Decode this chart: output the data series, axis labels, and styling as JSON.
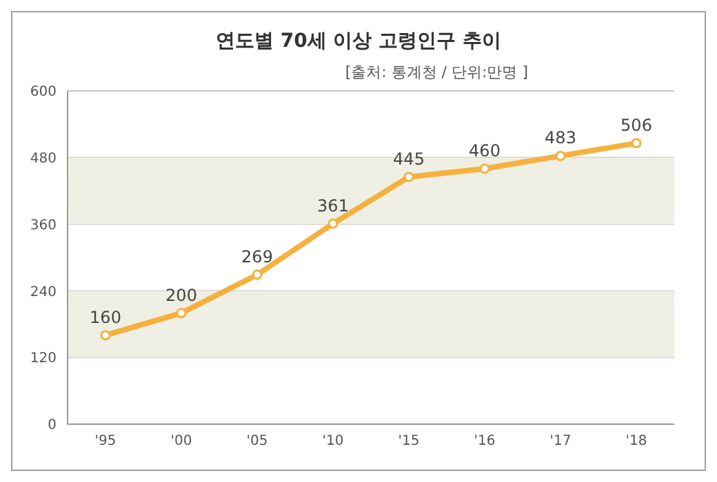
{
  "chart_data": {
    "type": "line",
    "title": "연도별 70세 이상 고령인구 추이",
    "subtitle": "[출처: 통계청 / 단위:만명 ]",
    "categories": [
      "'95",
      "'00",
      "'05",
      "'10",
      "'15",
      "'16",
      "'17",
      "'18"
    ],
    "series": [
      {
        "color": "#f5b13f",
        "values": [
          160,
          200,
          269,
          361,
          445,
          460,
          483,
          506
        ]
      }
    ],
    "ylim": [
      0,
      600
    ],
    "yticks": [
      0,
      120,
      240,
      360,
      480,
      600
    ],
    "grid": "y",
    "marker": "circle",
    "line_style": "solid",
    "data_labels": true,
    "legend": false,
    "bands": [
      {
        "axis": "y",
        "from": 120,
        "to": 240,
        "color": "#efefe4"
      },
      {
        "axis": "y",
        "from": 360,
        "to": 480,
        "color": "#efefe4"
      }
    ]
  }
}
